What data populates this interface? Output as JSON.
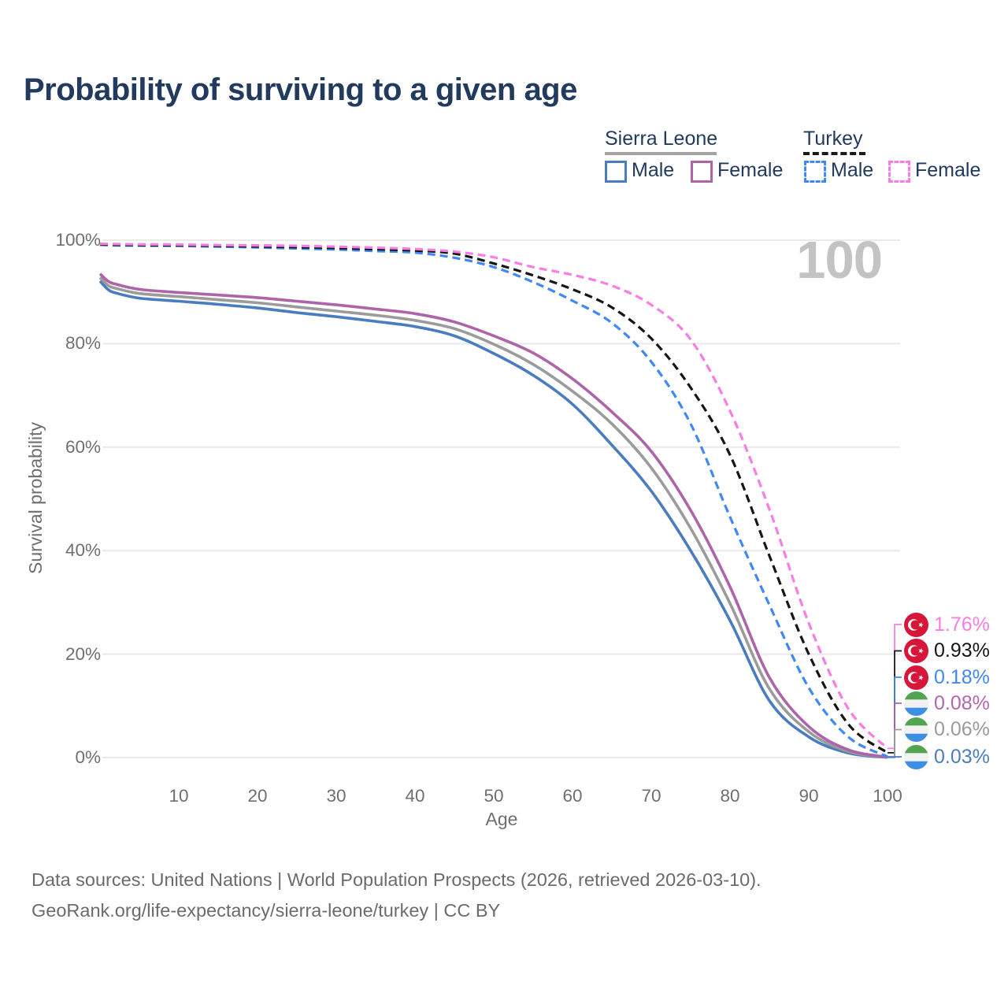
{
  "title": "Probability of surviving to a given age",
  "watermark": "100",
  "legend": {
    "groups": [
      {
        "label": "Sierra Leone",
        "underline_style": "solid",
        "underline_color": "#a3a3a3",
        "items": [
          {
            "label": "Male",
            "color": "#4a7dbf",
            "style": "solid"
          },
          {
            "label": "Female",
            "color": "#ad64a8",
            "style": "solid"
          }
        ]
      },
      {
        "label": "Turkey",
        "underline_style": "dashed",
        "underline_color": "#1a1a1a",
        "items": [
          {
            "label": "Male",
            "color": "#3f88f5",
            "style": "dashed"
          },
          {
            "label": "Female",
            "color": "#fb7de4",
            "style": "dashed"
          }
        ]
      }
    ]
  },
  "axes": {
    "y_label": "Survival probability",
    "x_label": "Age",
    "y_ticks": [
      {
        "label": "0%",
        "value": 0
      },
      {
        "label": "20%",
        "value": 20
      },
      {
        "label": "40%",
        "value": 40
      },
      {
        "label": "60%",
        "value": 60
      },
      {
        "label": "80%",
        "value": 80
      },
      {
        "label": "100%",
        "value": 100
      }
    ],
    "x_ticks": [
      {
        "label": "10",
        "value": 10
      },
      {
        "label": "20",
        "value": 20
      },
      {
        "label": "30",
        "value": 30
      },
      {
        "label": "40",
        "value": 40
      },
      {
        "label": "50",
        "value": 50
      },
      {
        "label": "60",
        "value": 60
      },
      {
        "label": "70",
        "value": 70
      },
      {
        "label": "80",
        "value": 80
      },
      {
        "label": "90",
        "value": 90
      },
      {
        "label": "100",
        "value": 100
      }
    ]
  },
  "chart_data": {
    "type": "line",
    "title": "Probability of surviving to a given age",
    "xlabel": "Age",
    "ylabel": "Survival probability",
    "xlim": [
      0,
      100
    ],
    "ylim": [
      0,
      100
    ],
    "unit": "%",
    "grid": "horizontal",
    "x": [
      0,
      1,
      2,
      5,
      10,
      15,
      20,
      25,
      30,
      35,
      40,
      45,
      50,
      55,
      60,
      65,
      70,
      75,
      80,
      85,
      90,
      95,
      100
    ],
    "series": [
      {
        "name": "Sierra Leone Male",
        "country": "Sierra Leone",
        "sex": "Male",
        "style": "solid",
        "color": "#4a7dbf",
        "flag": "sierra-leone",
        "end_label": "0.03%",
        "end_label_color": "#4a7dbf",
        "values": [
          92.1,
          90.5,
          89.8,
          88.8,
          88.2,
          87.6,
          86.9,
          86.0,
          85.2,
          84.3,
          83.3,
          81.5,
          78.1,
          73.9,
          68.3,
          60.4,
          51.5,
          40.0,
          26.5,
          11.0,
          4.0,
          0.9,
          0.03
        ]
      },
      {
        "name": "Sierra Leone Both sexes",
        "country": "Sierra Leone",
        "sex": "Both",
        "style": "solid",
        "color": "#9b9b9b",
        "flag": "sierra-leone",
        "end_label": "0.06%",
        "end_label_color": "#9b9b9b",
        "values": [
          92.8,
          91.3,
          90.7,
          89.7,
          89.1,
          88.5,
          87.9,
          87.1,
          86.3,
          85.5,
          84.5,
          82.9,
          79.9,
          76.0,
          70.8,
          64.5,
          56.0,
          44.3,
          29.8,
          13.3,
          5.0,
          1.2,
          0.06
        ]
      },
      {
        "name": "Sierra Leone Female",
        "country": "Sierra Leone",
        "sex": "Female",
        "style": "solid",
        "color": "#ad64a8",
        "flag": "sierra-leone",
        "end_label": "0.08%",
        "end_label_color": "#b666ae",
        "values": [
          93.5,
          92.1,
          91.5,
          90.5,
          89.9,
          89.4,
          88.9,
          88.2,
          87.5,
          86.7,
          85.8,
          84.2,
          81.5,
          78.2,
          73.2,
          66.8,
          59.2,
          47.8,
          33.0,
          15.5,
          6.0,
          1.5,
          0.08
        ]
      },
      {
        "name": "Turkey Male",
        "country": "Turkey",
        "sex": "Male",
        "style": "dashed",
        "color": "#3f88f5",
        "flag": "turkey",
        "end_label": "0.18%",
        "end_label_color": "#3f88f5",
        "values": [
          99.1,
          99.05,
          99.0,
          98.95,
          98.9,
          98.75,
          98.6,
          98.4,
          98.2,
          97.9,
          97.6,
          96.6,
          94.8,
          91.9,
          88.3,
          84.0,
          76.5,
          64.5,
          46.5,
          29.5,
          13.5,
          4.0,
          0.18
        ]
      },
      {
        "name": "Turkey Both sexes",
        "country": "Turkey",
        "sex": "Both",
        "style": "dashed",
        "color": "#161616",
        "flag": "turkey",
        "end_label": "0.93%",
        "end_label_color": "#161616",
        "values": [
          99.2,
          99.15,
          99.1,
          99.05,
          99.0,
          98.9,
          98.8,
          98.65,
          98.5,
          98.25,
          98.0,
          97.4,
          95.5,
          93.2,
          90.5,
          87.0,
          81.0,
          71.5,
          58.5,
          39.0,
          20.0,
          6.5,
          0.93
        ]
      },
      {
        "name": "Turkey Female",
        "country": "Turkey",
        "sex": "Female",
        "style": "dashed",
        "color": "#fb7de4",
        "flag": "turkey",
        "end_label": "1.76%",
        "end_label_color": "#fb7de4",
        "values": [
          99.3,
          99.28,
          99.25,
          99.2,
          99.15,
          99.05,
          99.0,
          98.9,
          98.75,
          98.55,
          98.3,
          97.8,
          96.7,
          94.8,
          93.3,
          91.2,
          87.5,
          80.8,
          67.0,
          48.0,
          26.0,
          9.5,
          1.76
        ]
      }
    ],
    "end_age_annotation": "100"
  },
  "footer": {
    "line1": "Data sources: United Nations | World Population Prospects (2026, retrieved 2026-03-10).",
    "line2": "GeoRank.org/life-expectancy/sierra-leone/turkey | CC BY"
  },
  "colors": {
    "title_text": "#223a5e",
    "legend_text": "#223a5e",
    "axis_text": "#6f6f6f",
    "gridline": "#e9e9e9",
    "watermark": "#c3c3c3",
    "footer_text": "#6b6b6b",
    "background": "#ffffff",
    "turkey_flag_red": "#d6173a",
    "sierra_leone_flag_green": "#53a352",
    "sierra_leone_flag_white": "#f2f2f2",
    "sierra_leone_flag_blue": "#3e8ee4"
  }
}
